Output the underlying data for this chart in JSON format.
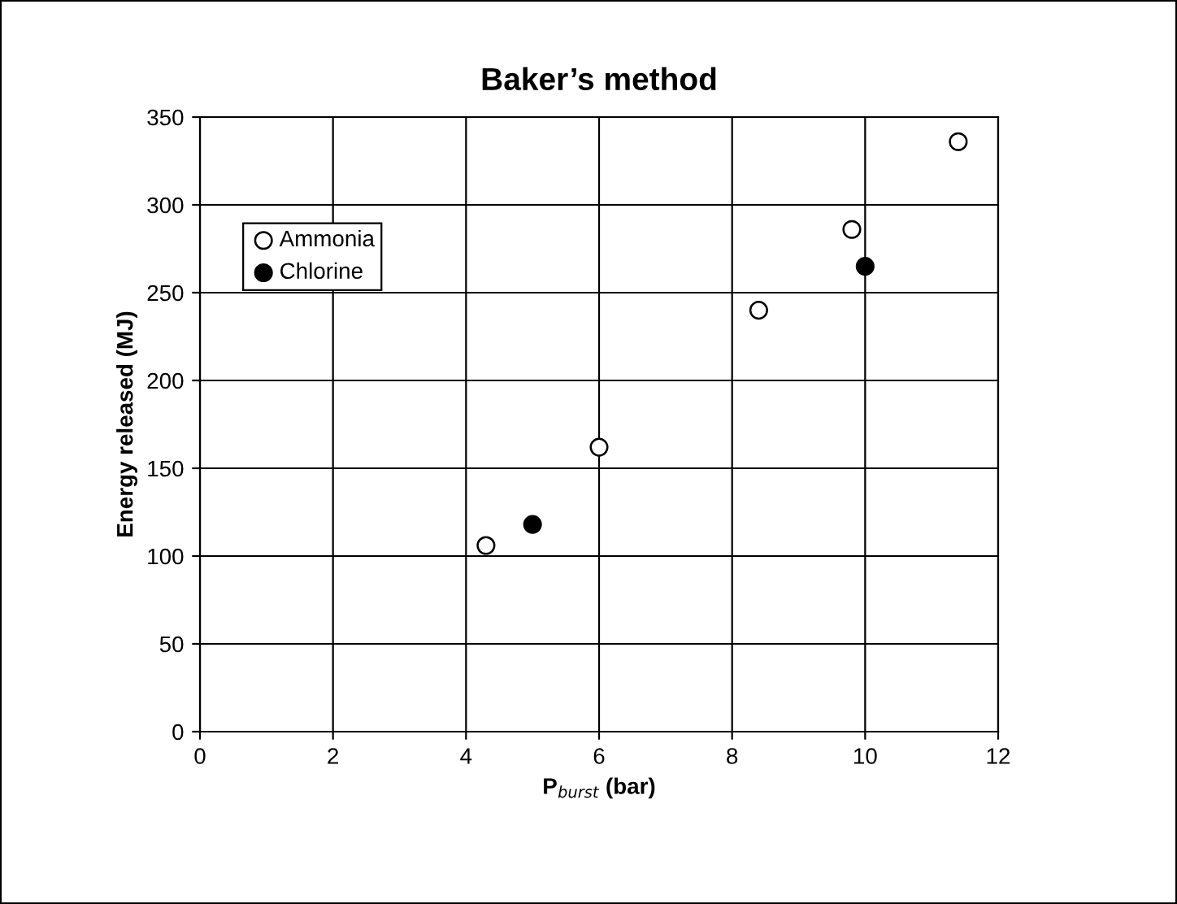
{
  "chart_data": {
    "type": "scatter",
    "title": "Baker’s method",
    "xlabel": "P$_{burst}$ (bar)",
    "ylabel": "Energy released (MJ)",
    "series": [
      {
        "name": "Ammonia",
        "color": "#ffffff",
        "x": [
          4.3,
          6.0,
          8.4,
          9.8,
          11.4
        ],
        "values": [
          106,
          162,
          240,
          286,
          336
        ]
      },
      {
        "name": "Chlorine",
        "color": "#000000",
        "x": [
          5.0,
          10.0
        ],
        "values": [
          118,
          265
        ]
      }
    ],
    "xlim": [
      0,
      12
    ],
    "xticks": [
      0,
      2,
      4,
      6,
      8,
      10,
      12
    ],
    "ylim": [
      0,
      350
    ],
    "yticks": [
      0,
      50,
      100,
      150,
      200,
      250,
      300,
      350
    ],
    "grid": true,
    "legend": "top left",
    "marker": "circle"
  }
}
